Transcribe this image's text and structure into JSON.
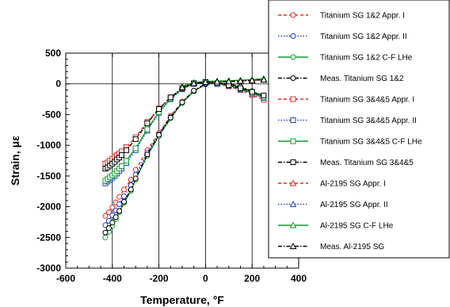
{
  "chart_data": {
    "type": "line",
    "title": "",
    "xlabel": "Temperature,  °F",
    "ylabel": "Strain, με",
    "xlim": [
      -600,
      400
    ],
    "ylim": [
      -3000,
      500
    ],
    "xticks": [
      -600,
      -400,
      -200,
      0,
      200,
      400
    ],
    "yticks": [
      500,
      0,
      -500,
      -1000,
      -1500,
      -2000,
      -2500,
      -3000
    ],
    "grid": "vertical lines at -400, -200, 0, 200 and horizontal zero line",
    "legend_position": "top-right",
    "series": [
      {
        "name": "Titanium SG 1&2 Appr. I",
        "color": "#e8281e",
        "line": "dashed",
        "marker": "circle",
        "x": [
          -430,
          -415,
          -400,
          -385,
          -370,
          -350,
          -320,
          -300,
          -250,
          -200,
          -150,
          -100,
          -50,
          0,
          50,
          100,
          150,
          200,
          250
        ],
        "y": [
          -2150,
          -2090,
          -2010,
          -1930,
          -1840,
          -1720,
          -1560,
          -1400,
          -1080,
          -800,
          -520,
          -290,
          -110,
          0,
          20,
          0,
          -50,
          -130,
          -230
        ]
      },
      {
        "name": "Titanium SG 1&2 Appr. II",
        "color": "#1f3fd6",
        "line": "dotted",
        "marker": "circle",
        "x": [
          -430,
          -415,
          -400,
          -385,
          -370,
          -350,
          -320,
          -300,
          -250,
          -200,
          -150,
          -100,
          -50,
          0,
          50,
          100,
          150,
          200,
          250
        ],
        "y": [
          -2300,
          -2230,
          -2140,
          -2060,
          -1960,
          -1830,
          -1650,
          -1480,
          -1120,
          -820,
          -540,
          -300,
          -120,
          -10,
          10,
          -5,
          -60,
          -140,
          -240
        ]
      },
      {
        "name": "Titanium SG 1&2 C-F LHe",
        "color": "#0d9e2a",
        "line": "solid",
        "marker": "circle",
        "x": [
          -430,
          -415,
          -400,
          -385,
          -370,
          -350,
          -320,
          -300,
          -250,
          -200,
          -150,
          -100,
          -50,
          0,
          50,
          100,
          150,
          200,
          250
        ],
        "y": [
          -2500,
          -2410,
          -2310,
          -2200,
          -2090,
          -1940,
          -1740,
          -1560,
          -1170,
          -850,
          -560,
          -310,
          -120,
          -10,
          15,
          0,
          -50,
          -130,
          -230
        ]
      },
      {
        "name": "Meas. Titanium SG 1&2",
        "color": "#000000",
        "line": "dashdot",
        "marker": "circle",
        "x": [
          -430,
          -415,
          -400,
          -385,
          -370,
          -350,
          -320,
          -300,
          -250,
          -200,
          -150,
          -100,
          -50,
          0,
          50,
          100,
          150,
          200,
          250
        ],
        "y": [
          -2420,
          -2350,
          -2260,
          -2170,
          -2070,
          -1920,
          -1720,
          -1540,
          -1150,
          -830,
          -550,
          -300,
          -110,
          0,
          20,
          0,
          -45,
          -120,
          -210
        ]
      },
      {
        "name": "Titanium SG 3&4&5 Appr. I",
        "color": "#e8281e",
        "line": "dashed",
        "marker": "square",
        "x": [
          -430,
          -420,
          -410,
          -400,
          -390,
          -380,
          -370,
          -360,
          -340,
          -300,
          -250,
          -200,
          -150,
          -100,
          -50,
          0,
          50,
          100,
          150,
          200,
          250
        ],
        "y": [
          -1300,
          -1280,
          -1250,
          -1220,
          -1190,
          -1160,
          -1130,
          -1100,
          -1030,
          -870,
          -620,
          -400,
          -220,
          -80,
          0,
          20,
          0,
          -40,
          -100,
          -180,
          -260
        ]
      },
      {
        "name": "Titanium SG 3&4&5 Appr. II",
        "color": "#1f3fd6",
        "line": "dotted",
        "marker": "square",
        "x": [
          -430,
          -420,
          -410,
          -400,
          -390,
          -380,
          -370,
          -360,
          -340,
          -300,
          -250,
          -200,
          -150,
          -100,
          -50,
          0,
          50,
          100,
          150,
          200,
          250
        ],
        "y": [
          -1620,
          -1590,
          -1560,
          -1530,
          -1500,
          -1460,
          -1420,
          -1380,
          -1290,
          -1080,
          -760,
          -470,
          -250,
          -90,
          0,
          20,
          0,
          -30,
          -90,
          -160,
          -230
        ]
      },
      {
        "name": "Titanium SG 3&4&5 C-F LHe",
        "color": "#0d9e2a",
        "line": "solid",
        "marker": "square",
        "x": [
          -430,
          -420,
          -410,
          -400,
          -390,
          -380,
          -370,
          -360,
          -340,
          -300,
          -250,
          -200,
          -150,
          -100,
          -50,
          0,
          50,
          100,
          150,
          200,
          250
        ],
        "y": [
          -1580,
          -1550,
          -1520,
          -1490,
          -1460,
          -1420,
          -1380,
          -1340,
          -1250,
          -1050,
          -740,
          -460,
          -240,
          -80,
          10,
          30,
          10,
          -20,
          -80,
          -150,
          -220
        ]
      },
      {
        "name": "Meas. Titanium SG 3&4&5",
        "color": "#000000",
        "line": "dashdot",
        "marker": "square",
        "x": [
          -430,
          -420,
          -410,
          -400,
          -390,
          -380,
          -370,
          -360,
          -340,
          -300,
          -250,
          -200,
          -150,
          -100,
          -50,
          0,
          50,
          100,
          150,
          200,
          250
        ],
        "y": [
          -1380,
          -1360,
          -1330,
          -1300,
          -1270,
          -1230,
          -1200,
          -1160,
          -1080,
          -900,
          -640,
          -410,
          -220,
          -70,
          10,
          30,
          10,
          -20,
          -70,
          -130,
          -190
        ]
      },
      {
        "name": "Al-2195 SG Appr. I",
        "color": "#e8281e",
        "line": "dashed",
        "marker": "triangle",
        "x": [
          -100,
          -50,
          0,
          50,
          100,
          150,
          200,
          250
        ],
        "y": [
          -60,
          10,
          30,
          35,
          40,
          45,
          55,
          65
        ]
      },
      {
        "name": "Al-2195 SG Appr. II",
        "color": "#1f3fd6",
        "line": "dotted",
        "marker": "triangle",
        "x": [
          -100,
          -50,
          0,
          50,
          100,
          150,
          200,
          250
        ],
        "y": [
          -50,
          15,
          35,
          40,
          45,
          50,
          60,
          70
        ]
      },
      {
        "name": "Al-2195 SG C-F LHe",
        "color": "#0d9e2a",
        "line": "solid",
        "marker": "triangle",
        "x": [
          -100,
          -50,
          0,
          50,
          100,
          150,
          200,
          250
        ],
        "y": [
          -40,
          20,
          40,
          45,
          50,
          60,
          70,
          85
        ]
      },
      {
        "name": "Meas. Al-2195 SG",
        "color": "#000000",
        "line": "dashdot",
        "marker": "triangle",
        "x": [
          -100,
          -50,
          0,
          50,
          100,
          150,
          200,
          250
        ],
        "y": [
          -55,
          10,
          30,
          35,
          40,
          48,
          58,
          68
        ]
      }
    ]
  }
}
